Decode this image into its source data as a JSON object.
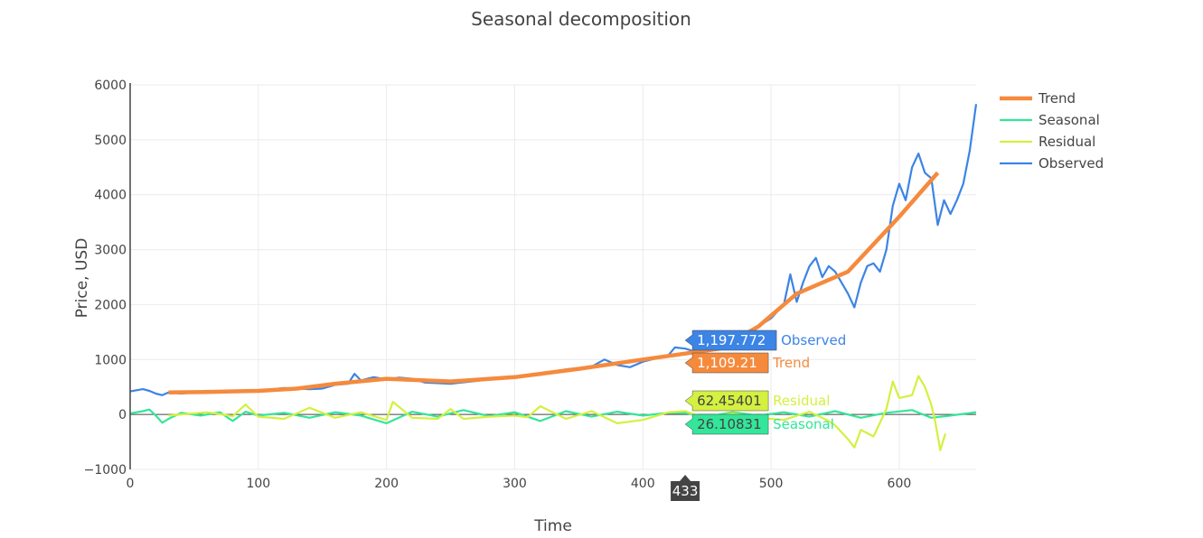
{
  "chart_data": {
    "type": "line",
    "title": "Seasonal decomposition",
    "xlabel": "Time",
    "ylabel": "Price, USD",
    "xlim": [
      0,
      660
    ],
    "ylim": [
      -1000,
      6000
    ],
    "xticks": [
      "0",
      "100",
      "200",
      "300",
      "400",
      "500",
      "600"
    ],
    "xtick_values": [
      0,
      100,
      200,
      300,
      400,
      500,
      600
    ],
    "yticks": [
      "−1000",
      "0",
      "1000",
      "2000",
      "3000",
      "4000",
      "5000",
      "6000"
    ],
    "ytick_values": [
      -1000,
      0,
      1000,
      2000,
      3000,
      4000,
      5000,
      6000
    ],
    "grid": true,
    "legend_position": "top-right",
    "series": [
      {
        "name": "Trend",
        "color": "#f58a3d",
        "points": [
          [
            30,
            400
          ],
          [
            60,
            410
          ],
          [
            100,
            430
          ],
          [
            130,
            470
          ],
          [
            160,
            560
          ],
          [
            200,
            650
          ],
          [
            250,
            600
          ],
          [
            300,
            680
          ],
          [
            350,
            830
          ],
          [
            400,
            1000
          ],
          [
            433,
            1109
          ],
          [
            460,
            1200
          ],
          [
            490,
            1600
          ],
          [
            520,
            2200
          ],
          [
            560,
            2600
          ],
          [
            600,
            3600
          ],
          [
            630,
            4400
          ]
        ]
      },
      {
        "name": "Seasonal",
        "color": "#33e699",
        "points": [
          [
            0,
            20
          ],
          [
            10,
            60
          ],
          [
            15,
            90
          ],
          [
            20,
            -20
          ],
          [
            25,
            -150
          ],
          [
            30,
            -80
          ],
          [
            40,
            30
          ],
          [
            55,
            -20
          ],
          [
            70,
            40
          ],
          [
            80,
            -120
          ],
          [
            90,
            50
          ],
          [
            100,
            -20
          ],
          [
            120,
            30
          ],
          [
            140,
            -60
          ],
          [
            160,
            40
          ],
          [
            180,
            -20
          ],
          [
            200,
            -160
          ],
          [
            220,
            50
          ],
          [
            240,
            -40
          ],
          [
            260,
            80
          ],
          [
            280,
            -30
          ],
          [
            300,
            40
          ],
          [
            320,
            -120
          ],
          [
            340,
            60
          ],
          [
            360,
            -40
          ],
          [
            380,
            50
          ],
          [
            400,
            -20
          ],
          [
            420,
            30
          ],
          [
            433,
            26
          ],
          [
            450,
            -40
          ],
          [
            470,
            40
          ],
          [
            490,
            -20
          ],
          [
            510,
            40
          ],
          [
            530,
            -40
          ],
          [
            550,
            60
          ],
          [
            570,
            -60
          ],
          [
            590,
            30
          ],
          [
            610,
            80
          ],
          [
            625,
            -60
          ],
          [
            640,
            -20
          ],
          [
            660,
            40
          ]
        ]
      },
      {
        "name": "Residual",
        "color": "#d4f040",
        "points": [
          [
            30,
            -20
          ],
          [
            60,
            40
          ],
          [
            80,
            -30
          ],
          [
            90,
            180
          ],
          [
            100,
            -40
          ],
          [
            120,
            -80
          ],
          [
            140,
            120
          ],
          [
            160,
            -60
          ],
          [
            180,
            40
          ],
          [
            200,
            -100
          ],
          [
            205,
            230
          ],
          [
            220,
            -60
          ],
          [
            240,
            -80
          ],
          [
            250,
            100
          ],
          [
            260,
            -80
          ],
          [
            280,
            -40
          ],
          [
            300,
            -20
          ],
          [
            310,
            -50
          ],
          [
            320,
            150
          ],
          [
            340,
            -80
          ],
          [
            360,
            60
          ],
          [
            380,
            -160
          ],
          [
            400,
            -100
          ],
          [
            420,
            40
          ],
          [
            433,
            62
          ],
          [
            450,
            -80
          ],
          [
            470,
            20
          ],
          [
            490,
            -60
          ],
          [
            510,
            -100
          ],
          [
            530,
            50
          ],
          [
            545,
            -120
          ],
          [
            550,
            -200
          ],
          [
            560,
            -450
          ],
          [
            565,
            -600
          ],
          [
            570,
            -280
          ],
          [
            580,
            -400
          ],
          [
            590,
            100
          ],
          [
            595,
            600
          ],
          [
            600,
            300
          ],
          [
            610,
            350
          ],
          [
            615,
            700
          ],
          [
            620,
            500
          ],
          [
            625,
            180
          ],
          [
            628,
            -120
          ],
          [
            632,
            -650
          ],
          [
            636,
            -350
          ]
        ]
      },
      {
        "name": "Observed",
        "color": "#3c84e6",
        "points": [
          [
            0,
            420
          ],
          [
            10,
            460
          ],
          [
            15,
            430
          ],
          [
            20,
            380
          ],
          [
            25,
            350
          ],
          [
            30,
            400
          ],
          [
            40,
            380
          ],
          [
            60,
            430
          ],
          [
            80,
            420
          ],
          [
            100,
            430
          ],
          [
            120,
            480
          ],
          [
            140,
            460
          ],
          [
            150,
            470
          ],
          [
            160,
            540
          ],
          [
            170,
            560
          ],
          [
            175,
            740
          ],
          [
            180,
            620
          ],
          [
            190,
            680
          ],
          [
            200,
            640
          ],
          [
            210,
            670
          ],
          [
            220,
            650
          ],
          [
            230,
            580
          ],
          [
            250,
            560
          ],
          [
            270,
            610
          ],
          [
            300,
            690
          ],
          [
            320,
            720
          ],
          [
            340,
            820
          ],
          [
            360,
            870
          ],
          [
            370,
            1000
          ],
          [
            380,
            900
          ],
          [
            390,
            860
          ],
          [
            400,
            960
          ],
          [
            410,
            1020
          ],
          [
            420,
            1080
          ],
          [
            425,
            1220
          ],
          [
            433,
            1198
          ],
          [
            440,
            1150
          ],
          [
            460,
            1250
          ],
          [
            480,
            1450
          ],
          [
            500,
            1750
          ],
          [
            510,
            2000
          ],
          [
            515,
            2550
          ],
          [
            520,
            2050
          ],
          [
            525,
            2400
          ],
          [
            530,
            2700
          ],
          [
            535,
            2850
          ],
          [
            540,
            2500
          ],
          [
            545,
            2700
          ],
          [
            550,
            2600
          ],
          [
            555,
            2400
          ],
          [
            560,
            2200
          ],
          [
            565,
            1950
          ],
          [
            570,
            2400
          ],
          [
            575,
            2700
          ],
          [
            580,
            2750
          ],
          [
            585,
            2600
          ],
          [
            590,
            3000
          ],
          [
            595,
            3800
          ],
          [
            600,
            4200
          ],
          [
            605,
            3900
          ],
          [
            610,
            4500
          ],
          [
            615,
            4750
          ],
          [
            620,
            4400
          ],
          [
            625,
            4300
          ],
          [
            630,
            3450
          ],
          [
            635,
            3900
          ],
          [
            640,
            3650
          ],
          [
            645,
            3900
          ],
          [
            650,
            4200
          ],
          [
            655,
            4800
          ],
          [
            660,
            5650
          ]
        ]
      }
    ],
    "hover": {
      "x_label": "433",
      "items": [
        {
          "series": "Observed",
          "value_label": "1,197.772",
          "value": 1197.772,
          "fill": "#3c84e6",
          "text_color": "#ffffff",
          "name_color": "#3c84e6"
        },
        {
          "series": "Trend",
          "value_label": "1,109.21",
          "value": 1109.21,
          "fill": "#f58a3d",
          "text_color": "#ffffff",
          "name_color": "#f58a3d"
        },
        {
          "series": "Residual",
          "value_label": "62.45401",
          "value": 62.45401,
          "fill": "#d4f040",
          "text_color": "#444444",
          "name_color": "#d4f040"
        },
        {
          "series": "Seasonal",
          "value_label": "26.10831",
          "value": 26.10831,
          "fill": "#33e699",
          "text_color": "#444444",
          "name_color": "#33e699"
        }
      ]
    }
  }
}
